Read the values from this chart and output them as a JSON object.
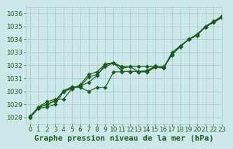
{
  "title": "",
  "xlabel": "Graphe pression niveau de la mer (hPa)",
  "ylabel": "",
  "bg_color": "#cce8e8",
  "grid_color": "#a0c8c8",
  "line_color": "#1a5c1a",
  "marker_color": "#1a5c1a",
  "xlim": [
    -0.5,
    23
  ],
  "ylim": [
    1027.5,
    1036.5
  ],
  "yticks": [
    1028,
    1029,
    1030,
    1031,
    1032,
    1033,
    1034,
    1035,
    1036
  ],
  "xticks": [
    0,
    1,
    2,
    3,
    4,
    5,
    6,
    7,
    8,
    9,
    10,
    11,
    12,
    13,
    14,
    15,
    16,
    17,
    18,
    19,
    20,
    21,
    22,
    23
  ],
  "series1_x": [
    0,
    1,
    2,
    3,
    4,
    5,
    6,
    7,
    8,
    9,
    10,
    11,
    12,
    13,
    14,
    15,
    16,
    17,
    18,
    19,
    20,
    21,
    22,
    23
  ],
  "series1_y": [
    1028.0,
    1028.7,
    1028.8,
    1029.0,
    1030.0,
    1030.3,
    1030.4,
    1030.7,
    1031.2,
    1032.1,
    1032.2,
    1031.9,
    1031.9,
    1031.9,
    1031.9,
    1031.9,
    1031.9,
    1032.8,
    1033.5,
    1034.0,
    1034.3,
    1035.0,
    1035.3,
    1035.7
  ],
  "series2_x": [
    0,
    1,
    2,
    3,
    4,
    5,
    6,
    7,
    8,
    9,
    10,
    11,
    12,
    13,
    14,
    15,
    16,
    17,
    18,
    19,
    20,
    21,
    22,
    23
  ],
  "series2_y": [
    1028.0,
    1028.8,
    1029.2,
    1029.4,
    1029.4,
    1030.2,
    1030.5,
    1031.3,
    1031.5,
    1032.1,
    1032.2,
    1031.8,
    1031.9,
    1031.5,
    1031.5,
    1031.85,
    1031.8,
    1033.0,
    1033.5,
    1034.0,
    1034.4,
    1035.0,
    1035.4,
    1035.8
  ],
  "series3_x": [
    0,
    1,
    2,
    3,
    4,
    5,
    6,
    7,
    8,
    9,
    10,
    11,
    12,
    13,
    14,
    15,
    16,
    17,
    18,
    19,
    20,
    21,
    22,
    23
  ],
  "series3_y": [
    1028.1,
    1028.8,
    1029.0,
    1029.3,
    1030.0,
    1030.2,
    1030.4,
    1031.1,
    1031.3,
    1031.9,
    1032.2,
    1031.55,
    1031.5,
    1031.55,
    1031.6,
    1031.95,
    1031.8,
    1032.85,
    1033.45,
    1034.0,
    1034.35,
    1034.95,
    1035.35,
    1035.75
  ],
  "series4_x": [
    0,
    1,
    2,
    3,
    4,
    5,
    6,
    7,
    8,
    9,
    10,
    11,
    12,
    13,
    14,
    15,
    16,
    17,
    18,
    19,
    20,
    21,
    22,
    23
  ],
  "series4_y": [
    1028.0,
    1028.75,
    1029.0,
    1029.25,
    1030.05,
    1030.35,
    1030.3,
    1030.0,
    1030.3,
    1030.3,
    1031.5,
    1031.5,
    1031.55,
    1031.5,
    1031.55,
    1031.9,
    1031.85,
    1032.85,
    1033.45,
    1034.0,
    1034.35,
    1034.95,
    1035.35,
    1035.7
  ],
  "xlabel_fontsize": 8,
  "tick_fontsize": 6.5,
  "xlabel_color": "#1a5c1a",
  "tick_color": "#1a5c1a"
}
